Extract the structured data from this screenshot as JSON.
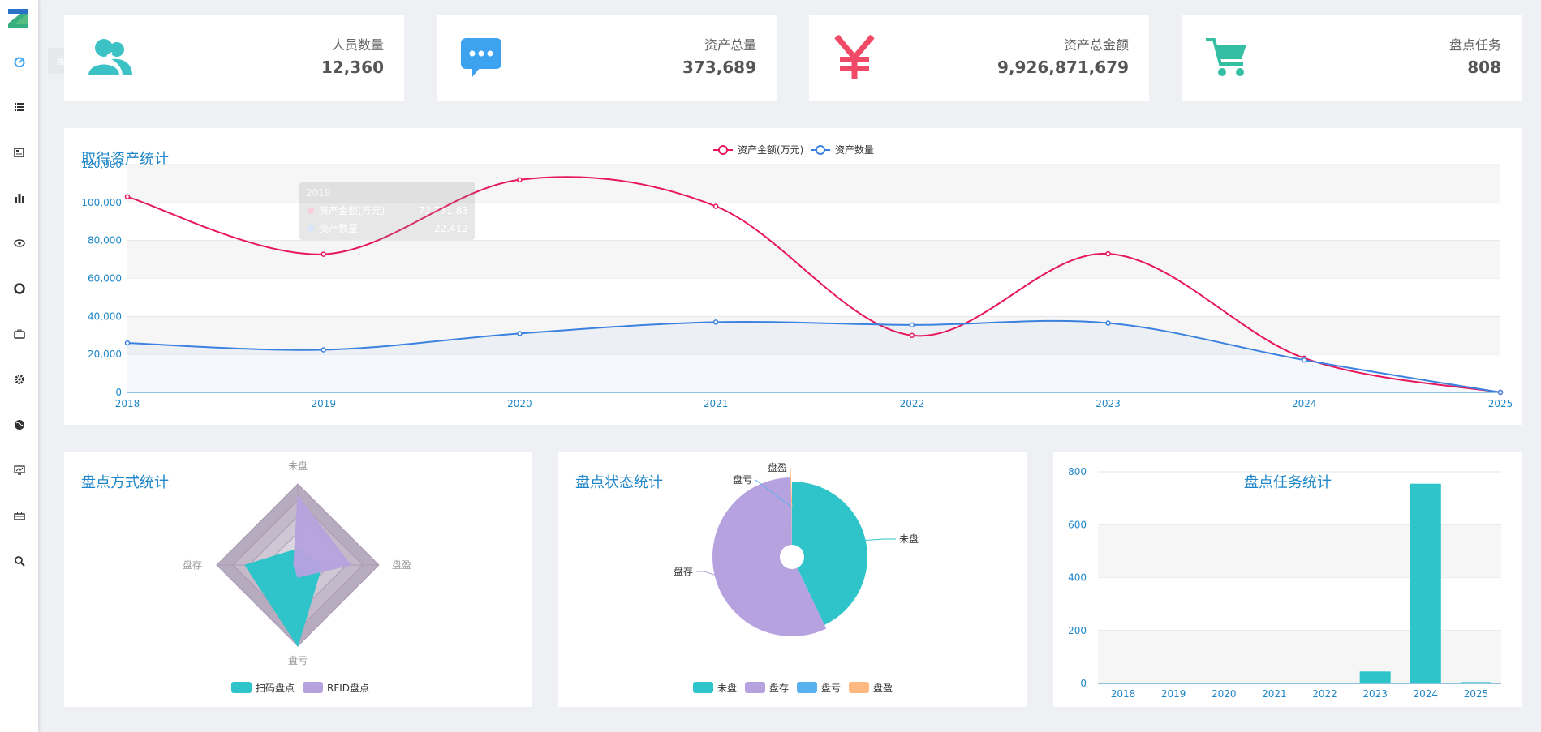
{
  "sidebar": {
    "tooltip": "首页",
    "items": [
      {
        "icon": "dashboard-icon"
      },
      {
        "icon": "list-icon"
      },
      {
        "icon": "newspaper-icon"
      },
      {
        "icon": "bar-chart-icon"
      },
      {
        "icon": "eye-icon"
      },
      {
        "icon": "lifebuoy-icon"
      },
      {
        "icon": "briefcase-icon"
      },
      {
        "icon": "gear-icon"
      },
      {
        "icon": "globe-icon"
      },
      {
        "icon": "monitor-chart-icon"
      },
      {
        "icon": "toolbox-icon"
      },
      {
        "icon": "search-icon"
      }
    ]
  },
  "stats": [
    {
      "label": "人员数量",
      "value": "12,360",
      "icon": "users-icon",
      "color": "#3cc2c4"
    },
    {
      "label": "资产总量",
      "value": "373,689",
      "icon": "chat-bubble-icon",
      "color": "#3da3f0"
    },
    {
      "label": "资产总金额",
      "value": "9,926,871,679",
      "icon": "yen-icon",
      "color": "#f04a66"
    },
    {
      "label": "盘点任务",
      "value": "808",
      "icon": "cart-icon",
      "color": "#34bfa3"
    }
  ],
  "colors": {
    "pink": "#e6175c",
    "blue": "#3b82e0",
    "teal": "#2ec4c9",
    "purple": "#b6a2de",
    "lightblue": "#5ab1ef",
    "orange": "#ffb980"
  },
  "asset_chart": {
    "title": "取得资产统计",
    "tooltip": {
      "year": "2019",
      "amount_label": "资产金额(万元)",
      "amount_value": "72,771.83",
      "count_label": "资产数量",
      "count_value": "22,412"
    }
  },
  "method_chart": {
    "title": "盘点方式统计"
  },
  "status_chart": {
    "title": "盘点状态统计"
  },
  "task_chart": {
    "title": "盘点任务统计"
  },
  "chart_data": [
    {
      "type": "line",
      "title": "取得资产统计",
      "x": [
        "2018",
        "2019",
        "2020",
        "2021",
        "2022",
        "2023",
        "2024",
        "2025"
      ],
      "series": [
        {
          "name": "资产金额(万元)",
          "values": [
            103000,
            72771.83,
            112000,
            98000,
            30000,
            73000,
            18000,
            0
          ]
        },
        {
          "name": "资产数量",
          "values": [
            26000,
            22412,
            31000,
            37000,
            35500,
            36500,
            17000,
            0
          ]
        }
      ],
      "ylim": [
        0,
        120000
      ],
      "yticks": [
        "0",
        "20,000",
        "40,000",
        "60,000",
        "80,000",
        "100,000",
        "120,000"
      ],
      "legend": "top-center",
      "grid": true
    },
    {
      "type": "radar",
      "title": "盘点方式统计",
      "indicators": [
        "未盘",
        "盘盈",
        "盘亏",
        "盘存"
      ],
      "series": [
        {
          "name": "扫码盘点",
          "values": [
            0.2,
            0.3,
            1.0,
            0.65
          ]
        },
        {
          "name": "RFID盘点",
          "values": [
            0.85,
            0.65,
            0.15,
            0.05
          ]
        }
      ],
      "legend": "bottom-center"
    },
    {
      "type": "pie",
      "title": "盘点状态统计",
      "slices": [
        {
          "name": "未盘",
          "value": 43
        },
        {
          "name": "盘存",
          "value": 57
        },
        {
          "name": "盘亏",
          "value": 0.1
        },
        {
          "name": "盘盈",
          "value": 0.1
        }
      ],
      "legend": "bottom-center"
    },
    {
      "type": "bar",
      "title": "盘点任务统计",
      "categories": [
        "2018",
        "2019",
        "2020",
        "2021",
        "2022",
        "2023",
        "2024",
        "2025"
      ],
      "values": [
        0,
        0,
        0,
        0,
        0,
        45,
        755,
        5
      ],
      "ylim": [
        0,
        800
      ],
      "yticks": [
        "0",
        "200",
        "400",
        "600",
        "800"
      ],
      "grid": true
    }
  ]
}
